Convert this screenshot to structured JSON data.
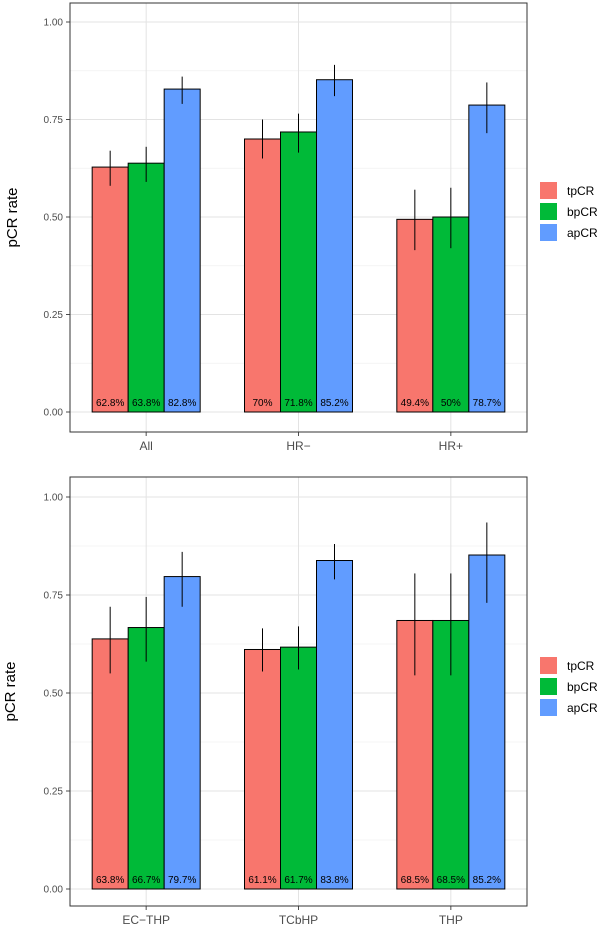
{
  "chart_data": [
    {
      "type": "bar",
      "ylabel": "pCR rate",
      "xlabel": "",
      "ylim": [
        0,
        1
      ],
      "y_ticks": [
        "0.00",
        "0.25",
        "0.50",
        "0.75",
        "1.00"
      ],
      "categories": [
        "All",
        "HR−",
        "HR+"
      ],
      "series": [
        {
          "name": "tpCR",
          "color": "#f8766d",
          "values": [
            0.628,
            0.7,
            0.494
          ],
          "lower": [
            0.58,
            0.65,
            0.415
          ],
          "upper": [
            0.67,
            0.75,
            0.57
          ],
          "labels": [
            "62.8%",
            "70%",
            "49.4%"
          ]
        },
        {
          "name": "bpCR",
          "color": "#00ba38",
          "values": [
            0.638,
            0.718,
            0.5
          ],
          "lower": [
            0.59,
            0.665,
            0.42
          ],
          "upper": [
            0.68,
            0.765,
            0.575
          ],
          "labels": [
            "63.8%",
            "71.8%",
            "50%"
          ]
        },
        {
          "name": "apCR",
          "color": "#619cff",
          "values": [
            0.828,
            0.852,
            0.787
          ],
          "lower": [
            0.79,
            0.81,
            0.715
          ],
          "upper": [
            0.86,
            0.89,
            0.845
          ],
          "labels": [
            "82.8%",
            "85.2%",
            "78.7%"
          ]
        }
      ],
      "legend": [
        "tpCR",
        "bpCR",
        "apCR"
      ]
    },
    {
      "type": "bar",
      "ylabel": "pCR rate",
      "xlabel": "",
      "ylim": [
        0,
        1
      ],
      "y_ticks": [
        "0.00",
        "0.25",
        "0.50",
        "0.75",
        "1.00"
      ],
      "categories": [
        "EC−THP",
        "TCbHP",
        "THP"
      ],
      "series": [
        {
          "name": "tpCR",
          "color": "#f8766d",
          "values": [
            0.638,
            0.611,
            0.685
          ],
          "lower": [
            0.55,
            0.555,
            0.545
          ],
          "upper": [
            0.72,
            0.665,
            0.805
          ],
          "labels": [
            "63.8%",
            "61.1%",
            "68.5%"
          ]
        },
        {
          "name": "bpCR",
          "color": "#00ba38",
          "values": [
            0.667,
            0.617,
            0.685
          ],
          "lower": [
            0.58,
            0.56,
            0.545
          ],
          "upper": [
            0.745,
            0.67,
            0.805
          ],
          "labels": [
            "66.7%",
            "61.7%",
            "68.5%"
          ]
        },
        {
          "name": "apCR",
          "color": "#619cff",
          "values": [
            0.797,
            0.838,
            0.852
          ],
          "lower": [
            0.72,
            0.79,
            0.73
          ],
          "upper": [
            0.86,
            0.88,
            0.935
          ],
          "labels": [
            "79.7%",
            "83.8%",
            "85.2%"
          ]
        }
      ],
      "legend": [
        "tpCR",
        "bpCR",
        "apCR"
      ]
    }
  ]
}
